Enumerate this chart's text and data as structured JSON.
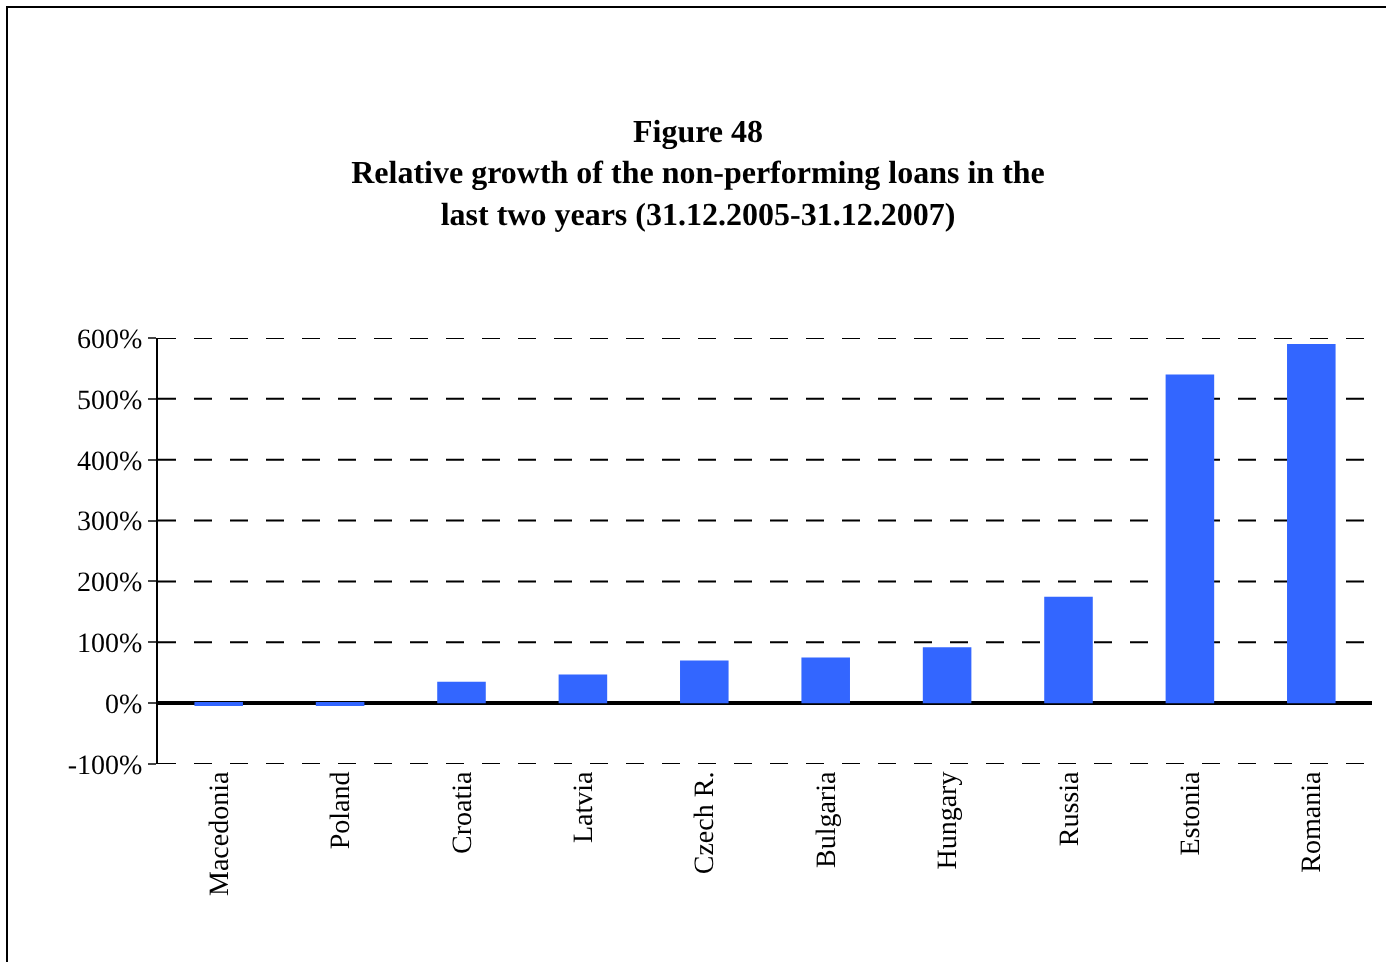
{
  "chart_data": {
    "type": "bar",
    "title": "Figure 48\nRelative growth of the non-performing loans in the\nlast two years (31.12.2005-31.12.2007)",
    "categories": [
      "Macedonia",
      "Poland",
      "Croatia",
      "Latvia",
      "Czech R.",
      "Bulgaria",
      "Hungary",
      "Russia",
      "Estonia",
      "Romania"
    ],
    "values": [
      -3,
      -3,
      35,
      47,
      70,
      75,
      92,
      175,
      540,
      590
    ],
    "color": "#3366ff",
    "ylim": [
      -100,
      600
    ],
    "yticks": [
      {
        "value": -100,
        "label": "-100%"
      },
      {
        "value": 0,
        "label": "0%"
      },
      {
        "value": 100,
        "label": "100%"
      },
      {
        "value": 200,
        "label": "200%"
      },
      {
        "value": 300,
        "label": "300%"
      },
      {
        "value": 400,
        "label": "400%"
      },
      {
        "value": 500,
        "label": "500%"
      },
      {
        "value": 600,
        "label": "600%"
      }
    ],
    "grid": "y",
    "line_style": "dashed"
  }
}
